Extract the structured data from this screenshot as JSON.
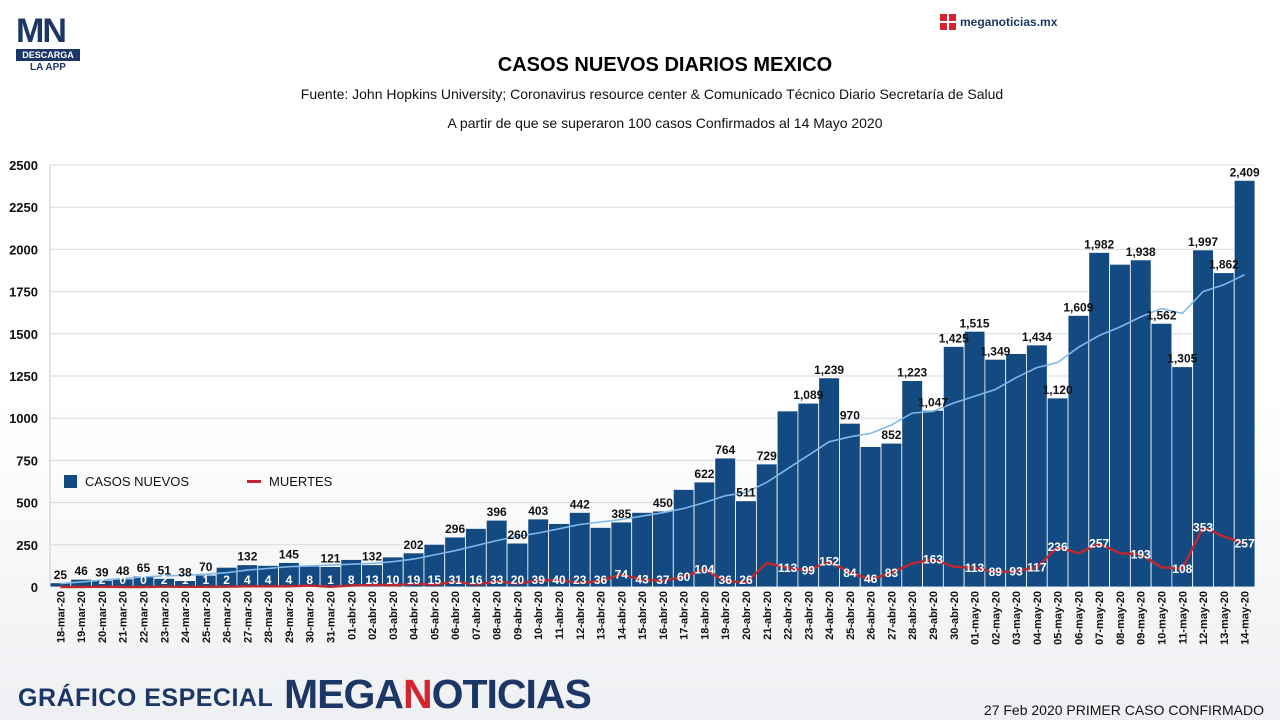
{
  "branding": {
    "logo_letters": "MN",
    "logo_line1": "DESCARGA",
    "logo_line2": "LA APP",
    "site": "meganoticias.mx",
    "footer_left": "GRÁFICO ESPECIAL",
    "footer_brand_a": "MEGA",
    "footer_brand_b": "N",
    "footer_brand_c": "OTICIAS",
    "footer_right": "27 Feb 2020 PRIMER CASO CONFIRMADO"
  },
  "colors": {
    "bar": "#144a82",
    "bar_stroke": "#ffffff",
    "trend": "#7fb9ea",
    "deaths": "#c0282e",
    "brand_navy": "#1c3766",
    "brand_red": "#d4242e"
  },
  "chart_data": {
    "type": "bar",
    "title": "CASOS NUEVOS DIARIOS MEXICO",
    "subtitle": "Fuente: John Hopkins University; Coronavirus resource center & Comunicado Técnico Diario Secretaría de Salud",
    "subtitle2": "A partir de que se superaron 100 casos Confirmados al 14 Mayo 2020",
    "ylim": [
      0,
      2500
    ],
    "yticks": [
      0,
      250,
      500,
      750,
      1000,
      1250,
      1500,
      1750,
      2000,
      2250,
      2500
    ],
    "grid": true,
    "legend_position": "left-middle",
    "categories": [
      "18-mar-20",
      "19-mar-20",
      "20-mar-20",
      "21-mar-20",
      "22-mar-20",
      "23-mar-20",
      "24-mar-20",
      "25-mar-20",
      "26-mar-20",
      "27-mar-20",
      "28-mar-20",
      "29-mar-20",
      "30-mar-20",
      "31-mar-20",
      "01-abr-20",
      "02-abr-20",
      "03-abr-20",
      "04-abr-20",
      "05-abr-20",
      "06-abr-20",
      "07-abr-20",
      "08-abr-20",
      "09-abr-20",
      "10-abr-20",
      "11-abr-20",
      "12-abr-20",
      "13-abr-20",
      "14-abr-20",
      "15-abr-20",
      "16-abr-20",
      "17-abr-20",
      "18-abr-20",
      "19-abr-20",
      "20-abr-20",
      "21-abr-20",
      "22-abr-20",
      "23-abr-20",
      "24-abr-20",
      "25-abr-20",
      "26-abr-20",
      "27-abr-20",
      "28-abr-20",
      "29-abr-20",
      "30-abr-20",
      "01-may-20",
      "02-may-20",
      "03-may-20",
      "04-may-20",
      "05-may-20",
      "06-may-20",
      "07-may-20",
      "08-may-20",
      "09-may-20",
      "10-may-20",
      "11-may-20",
      "12-may-20",
      "13-may-20",
      "14-may-20"
    ],
    "series": [
      {
        "name": "CASOS NUEVOS",
        "kind": "bar",
        "values": [
          25,
          46,
          39,
          48,
          65,
          51,
          38,
          70,
          117,
          132,
          128,
          145,
          123,
          121,
          163,
          132,
          178,
          202,
          253,
          296,
          347,
          396,
          260,
          403,
          376,
          442,
          353,
          385,
          442,
          450,
          578,
          622,
          764,
          511,
          729,
          1043,
          1089,
          1239,
          970,
          832,
          852,
          1223,
          1047,
          1425,
          1515,
          1349,
          1383,
          1434,
          1120,
          1609,
          1982,
          1912,
          1938,
          1562,
          1305,
          1997,
          1862,
          2409
        ],
        "labels": [
          "25",
          "46",
          "39",
          "48",
          "65",
          "51",
          "38",
          "70",
          "",
          "132",
          "",
          "145",
          "",
          "121",
          "",
          "132",
          "",
          "202",
          "",
          "296",
          "",
          "396",
          "260",
          "403",
          "",
          "442",
          "",
          "385",
          "",
          "450",
          "",
          "622",
          "764",
          "511",
          "729",
          "",
          "1,089",
          "1,239",
          "970",
          "",
          "852",
          "1,223",
          "1,047",
          "1,425",
          "1,515",
          "1,349",
          "",
          "1,434",
          "1,120",
          "1,609",
          "1,982",
          "",
          "1,938",
          "1,562",
          "1,305",
          "1,997",
          "1,862",
          "2,409"
        ]
      },
      {
        "name": "MUERTES",
        "kind": "line",
        "values": [
          0,
          0,
          2,
          0,
          0,
          2,
          1,
          1,
          2,
          4,
          4,
          4,
          8,
          1,
          8,
          13,
          10,
          19,
          15,
          31,
          16,
          33,
          20,
          39,
          40,
          23,
          36,
          74,
          43,
          37,
          60,
          104,
          36,
          26,
          143,
          113,
          99,
          152,
          84,
          46,
          83,
          140,
          163,
          120,
          113,
          89,
          93,
          117,
          236,
          200,
          257,
          200,
          193,
          117,
          108,
          353,
          300,
          257
        ],
        "labels": [
          "",
          "",
          "2",
          "0",
          "0",
          "2",
          "1",
          "1",
          "2",
          "4",
          "4",
          "4",
          "8",
          "1",
          "8",
          "13",
          "10",
          "19",
          "15",
          "31",
          "16",
          "33",
          "20",
          "39",
          "40",
          "23",
          "36",
          "74",
          "43",
          "37",
          "60",
          "104",
          "36",
          "26",
          "",
          "113",
          "99",
          "152",
          "84",
          "46",
          "83",
          "",
          "163",
          "",
          "113",
          "89",
          "93",
          "117",
          "236",
          "",
          "257",
          "",
          "193",
          "",
          "108",
          "353",
          "",
          "257"
        ]
      },
      {
        "name": "",
        "kind": "trend",
        "values": [
          20,
          30,
          40,
          50,
          60,
          66,
          70,
          75,
          85,
          100,
          110,
          120,
          125,
          130,
          135,
          140,
          150,
          165,
          190,
          215,
          245,
          275,
          300,
          320,
          345,
          370,
          385,
          400,
          420,
          440,
          465,
          500,
          540,
          560,
          620,
          700,
          780,
          860,
          890,
          910,
          960,
          1030,
          1040,
          1090,
          1130,
          1170,
          1240,
          1300,
          1330,
          1420,
          1490,
          1540,
          1600,
          1650,
          1620,
          1750,
          1790,
          1850
        ]
      }
    ]
  }
}
